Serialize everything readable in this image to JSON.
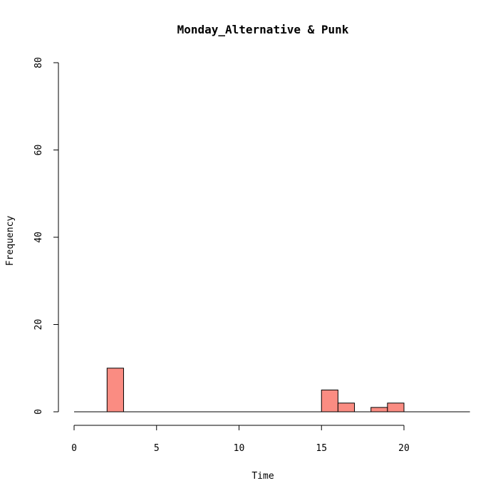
{
  "chart_data": {
    "type": "bar",
    "title": "Monday_Alternative & Punk",
    "xlabel": "Time",
    "ylabel": "Frequency",
    "xlim": [
      0,
      24
    ],
    "ylim": [
      0,
      80
    ],
    "x_ticks": [
      0,
      5,
      10,
      15,
      20
    ],
    "y_ticks": [
      0,
      20,
      40,
      60,
      80
    ],
    "bin_width": 1,
    "bins": [
      {
        "start": 0,
        "end": 1,
        "value": 0
      },
      {
        "start": 1,
        "end": 2,
        "value": 0
      },
      {
        "start": 2,
        "end": 3,
        "value": 10
      },
      {
        "start": 3,
        "end": 4,
        "value": 0
      },
      {
        "start": 4,
        "end": 5,
        "value": 0
      },
      {
        "start": 5,
        "end": 6,
        "value": 0
      },
      {
        "start": 6,
        "end": 7,
        "value": 0
      },
      {
        "start": 7,
        "end": 8,
        "value": 0
      },
      {
        "start": 8,
        "end": 9,
        "value": 0
      },
      {
        "start": 9,
        "end": 10,
        "value": 0
      },
      {
        "start": 10,
        "end": 11,
        "value": 0
      },
      {
        "start": 11,
        "end": 12,
        "value": 0
      },
      {
        "start": 12,
        "end": 13,
        "value": 0
      },
      {
        "start": 13,
        "end": 14,
        "value": 0
      },
      {
        "start": 14,
        "end": 15,
        "value": 0
      },
      {
        "start": 15,
        "end": 16,
        "value": 5
      },
      {
        "start": 16,
        "end": 17,
        "value": 2
      },
      {
        "start": 17,
        "end": 18,
        "value": 0
      },
      {
        "start": 18,
        "end": 19,
        "value": 1
      },
      {
        "start": 19,
        "end": 20,
        "value": 2
      },
      {
        "start": 20,
        "end": 21,
        "value": 0
      },
      {
        "start": 21,
        "end": 22,
        "value": 0
      },
      {
        "start": 22,
        "end": 23,
        "value": 0
      },
      {
        "start": 23,
        "end": 24,
        "value": 0
      }
    ],
    "bar_color": "#fa8c82",
    "grid": false
  }
}
